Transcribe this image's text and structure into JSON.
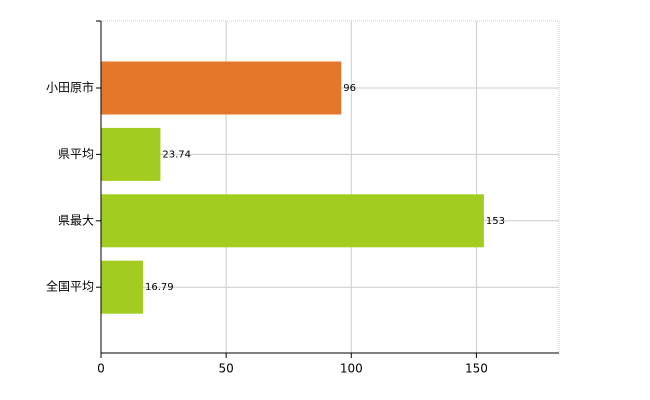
{
  "chart_data": {
    "type": "bar",
    "orientation": "horizontal",
    "categories": [
      "小田原市",
      "県平均",
      "県最大",
      "全国平均"
    ],
    "values": [
      96,
      23.74,
      153,
      16.79
    ],
    "colors": [
      "#e5772a",
      "#a3cc21",
      "#a3cc21",
      "#a3cc21"
    ],
    "xlim": [
      0,
      183
    ],
    "xticks": [
      0,
      50,
      100,
      150
    ],
    "grid": true
  }
}
